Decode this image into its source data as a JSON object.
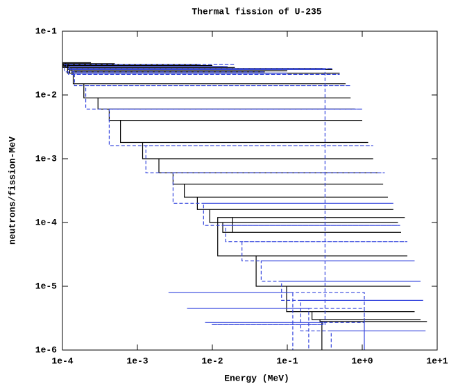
{
  "chart_data": {
    "type": "step",
    "title": "Thermal fission of U-235",
    "x_label": "Energy (MeV)",
    "y_label": "neutrons/fission-MeV",
    "x_scale": "log",
    "y_scale": "log",
    "xlim": [
      0.0001,
      10
    ],
    "ylim": [
      1e-06,
      0.1
    ],
    "xticks": [
      {
        "value": 0.0001,
        "label": "1e-4"
      },
      {
        "value": 0.001,
        "label": "1e-3"
      },
      {
        "value": 0.01,
        "label": "1e-2"
      },
      {
        "value": 0.1,
        "label": "1e-1"
      },
      {
        "value": 1,
        "label": "1e+0"
      },
      {
        "value": 10,
        "label": "1e+1"
      }
    ],
    "yticks": [
      {
        "value": 1e-06,
        "label": "1e-6"
      },
      {
        "value": 1e-05,
        "label": "1e-5"
      },
      {
        "value": 0.0001,
        "label": "1e-4"
      },
      {
        "value": 0.001,
        "label": "1e-3"
      },
      {
        "value": 0.01,
        "label": "1e-2"
      },
      {
        "value": 0.1,
        "label": "1e-1"
      }
    ],
    "series": [
      {
        "color": "#000000",
        "dash": false,
        "x": [
          0.0001,
          0.00012,
          0.00014,
          0.00017,
          0.0002,
          0.00024,
          0.00028,
          0.00034,
          0.0004,
          0.0005,
          0.0006,
          0.0008,
          0.001,
          0.0015,
          0.002,
          0.003,
          0.005,
          0.007,
          0.01,
          0.014,
          0.02,
          0.03,
          0.05,
          0.08,
          0.1,
          0.15,
          0.2,
          0.3,
          0.4,
          0.5,
          0.6,
          0.7,
          0.8,
          1.0,
          1.2,
          1.4,
          1.6,
          1.9,
          2.2,
          2.6,
          3.0,
          3.3,
          3.7,
          4.0,
          4.4,
          5.0,
          6.0,
          7.0,
          7.3
        ],
        "values": [
          0.032,
          0.028,
          0.031,
          0.029,
          0.032,
          0.027,
          0.03,
          0.028,
          0.031,
          0.029,
          0.03,
          0.028,
          0.03,
          0.029,
          0.03,
          0.029,
          0.03,
          0.029,
          0.028,
          0.027,
          0.022,
          0.023,
          0.022,
          0.024,
          0.026,
          0.025,
          0.026,
          0.025,
          0.022,
          0.015,
          0.009,
          0.006,
          0.004,
          0.0018,
          0.001,
          0.0006,
          0.0004,
          0.00025,
          0.00016,
          0.0001,
          7e-05,
          0.00012,
          3e-05,
          1e-05,
          4e-06,
          3e-06,
          2.8e-06,
          2.8e-06,
          1e-08
        ]
      },
      {
        "color": "#3344dd",
        "dash": true,
        "x": [
          0.0001,
          0.00245,
          0.0026,
          0.0043,
          0.0046,
          0.0073,
          0.008,
          0.0098,
          0.012,
          0.016,
          0.02,
          0.05,
          0.1,
          0.3,
          0.4,
          0.5,
          0.7,
          1.0,
          1.4,
          2.0,
          2.6,
          3.2,
          4.0,
          5.0,
          6.0,
          6.5,
          7.0
        ],
        "values": [
          1e-08,
          8e-06,
          1e-08,
          4.5e-06,
          1e-08,
          2.7e-06,
          2.5e-06,
          0.025,
          0.028,
          0.03,
          0.023,
          0.022,
          0.025,
          0.026,
          0.021,
          0.014,
          0.006,
          0.0016,
          0.0006,
          0.0002,
          9e-05,
          5e-05,
          2.5e-05,
          1.2e-05,
          6e-06,
          2e-06,
          1e-08
        ]
      }
    ]
  }
}
